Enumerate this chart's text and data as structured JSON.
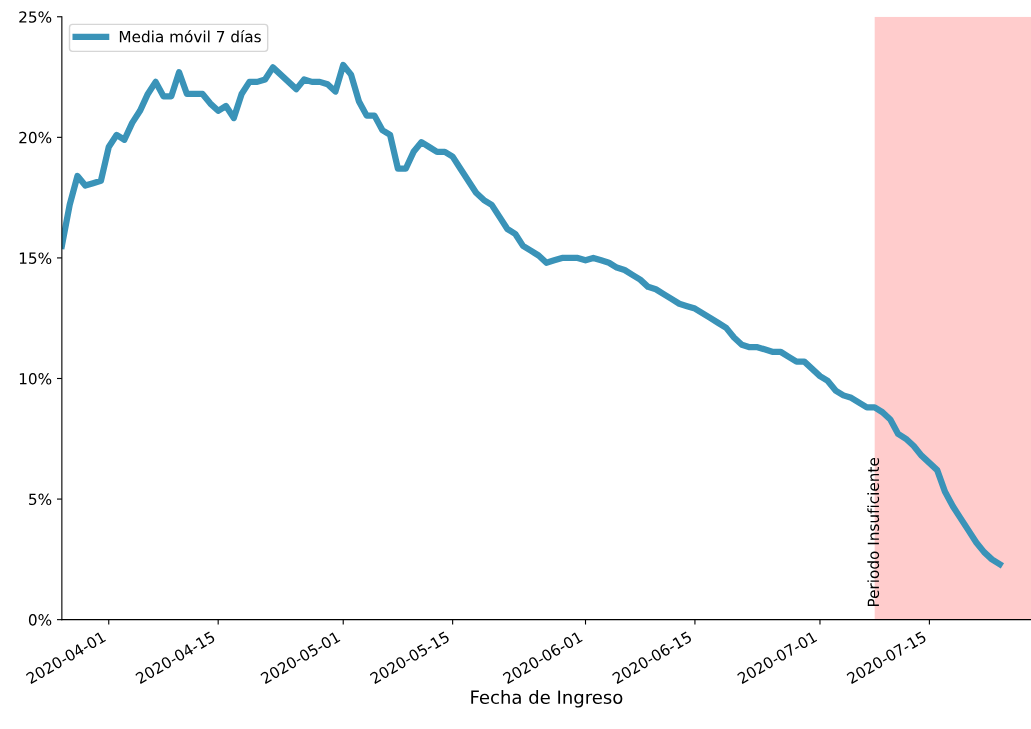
{
  "chart_data": {
    "type": "line",
    "xlabel": "Fecha de Ingreso",
    "x": [
      "2020-03-26",
      "2020-03-27",
      "2020-03-28",
      "2020-03-29",
      "2020-03-30",
      "2020-03-31",
      "2020-04-01",
      "2020-04-02",
      "2020-04-03",
      "2020-04-04",
      "2020-04-05",
      "2020-04-06",
      "2020-04-07",
      "2020-04-08",
      "2020-04-09",
      "2020-04-10",
      "2020-04-11",
      "2020-04-12",
      "2020-04-13",
      "2020-04-14",
      "2020-04-15",
      "2020-04-16",
      "2020-04-17",
      "2020-04-18",
      "2020-04-19",
      "2020-04-20",
      "2020-04-21",
      "2020-04-22",
      "2020-04-23",
      "2020-04-24",
      "2020-04-25",
      "2020-04-26",
      "2020-04-27",
      "2020-04-28",
      "2020-04-29",
      "2020-04-30",
      "2020-05-01",
      "2020-05-02",
      "2020-05-03",
      "2020-05-04",
      "2020-05-05",
      "2020-05-06",
      "2020-05-07",
      "2020-05-08",
      "2020-05-09",
      "2020-05-10",
      "2020-05-11",
      "2020-05-12",
      "2020-05-13",
      "2020-05-14",
      "2020-05-15",
      "2020-05-16",
      "2020-05-17",
      "2020-05-18",
      "2020-05-19",
      "2020-05-20",
      "2020-05-21",
      "2020-05-22",
      "2020-05-23",
      "2020-05-24",
      "2020-05-25",
      "2020-05-26",
      "2020-05-27",
      "2020-05-28",
      "2020-05-29",
      "2020-05-30",
      "2020-05-31",
      "2020-06-01",
      "2020-06-02",
      "2020-06-03",
      "2020-06-04",
      "2020-06-05",
      "2020-06-06",
      "2020-06-07",
      "2020-06-08",
      "2020-06-09",
      "2020-06-10",
      "2020-06-11",
      "2020-06-12",
      "2020-06-13",
      "2020-06-14",
      "2020-06-15",
      "2020-06-16",
      "2020-06-17",
      "2020-06-18",
      "2020-06-19",
      "2020-06-20",
      "2020-06-21",
      "2020-06-22",
      "2020-06-23",
      "2020-06-24",
      "2020-06-25",
      "2020-06-26",
      "2020-06-27",
      "2020-06-28",
      "2020-06-29",
      "2020-06-30",
      "2020-07-01",
      "2020-07-02",
      "2020-07-03",
      "2020-07-04",
      "2020-07-05",
      "2020-07-06",
      "2020-07-07",
      "2020-07-08",
      "2020-07-09",
      "2020-07-10",
      "2020-07-11",
      "2020-07-12",
      "2020-07-13",
      "2020-07-14",
      "2020-07-15",
      "2020-07-16",
      "2020-07-17",
      "2020-07-18",
      "2020-07-19",
      "2020-07-20",
      "2020-07-21",
      "2020-07-22",
      "2020-07-23",
      "2020-07-24"
    ],
    "series": [
      {
        "name": "Media móvil 7 días",
        "color": "#3a93b8",
        "values": [
          15.5,
          17.2,
          18.4,
          18.0,
          18.1,
          18.2,
          19.6,
          20.1,
          19.9,
          20.6,
          21.1,
          21.8,
          22.3,
          21.7,
          21.7,
          22.7,
          21.8,
          21.8,
          21.8,
          21.4,
          21.1,
          21.3,
          20.8,
          21.8,
          22.3,
          22.3,
          22.4,
          22.9,
          22.6,
          22.3,
          22.0,
          22.4,
          22.3,
          22.3,
          22.2,
          21.9,
          23.0,
          22.6,
          21.5,
          20.9,
          20.9,
          20.3,
          20.1,
          18.7,
          18.7,
          19.4,
          19.8,
          19.6,
          19.4,
          19.4,
          19.2,
          18.7,
          18.2,
          17.7,
          17.4,
          17.2,
          16.7,
          16.2,
          16.0,
          15.5,
          15.3,
          15.1,
          14.8,
          14.9,
          15.0,
          15.0,
          15.0,
          14.9,
          15.0,
          14.9,
          14.8,
          14.6,
          14.5,
          14.3,
          14.1,
          13.8,
          13.7,
          13.5,
          13.3,
          13.1,
          13.0,
          12.9,
          12.7,
          12.5,
          12.3,
          12.1,
          11.7,
          11.4,
          11.3,
          11.3,
          11.2,
          11.1,
          11.1,
          10.9,
          10.7,
          10.7,
          10.4,
          10.1,
          9.9,
          9.5,
          9.3,
          9.2,
          9.0,
          8.8,
          8.8,
          8.6,
          8.3,
          7.7,
          7.5,
          7.2,
          6.8,
          6.5,
          6.2,
          5.3,
          4.7,
          4.2,
          3.7,
          3.2,
          2.8,
          2.5,
          2.3
        ]
      }
    ],
    "xlim": [
      "2020-03-26",
      "2020-07-28"
    ],
    "xticks": [
      "2020-04-01",
      "2020-04-15",
      "2020-05-01",
      "2020-05-15",
      "2020-06-01",
      "2020-06-15",
      "2020-07-01",
      "2020-07-15"
    ],
    "ylim": [
      0,
      25
    ],
    "yticks": [
      {
        "value": 0,
        "label": "0%"
      },
      {
        "value": 5,
        "label": "5%"
      },
      {
        "value": 10,
        "label": "10%"
      },
      {
        "value": 15,
        "label": "15%"
      },
      {
        "value": 20,
        "label": "20%"
      },
      {
        "value": 25,
        "label": "25%"
      }
    ],
    "bands": [
      {
        "axis": "x",
        "from": "2020-07-08",
        "to": "2020-07-28",
        "label": "Periodo Insuficiente",
        "color": "#ffcccc"
      }
    ],
    "grid": false,
    "legend": "top left",
    "line_style": "solid",
    "marker": "none"
  }
}
